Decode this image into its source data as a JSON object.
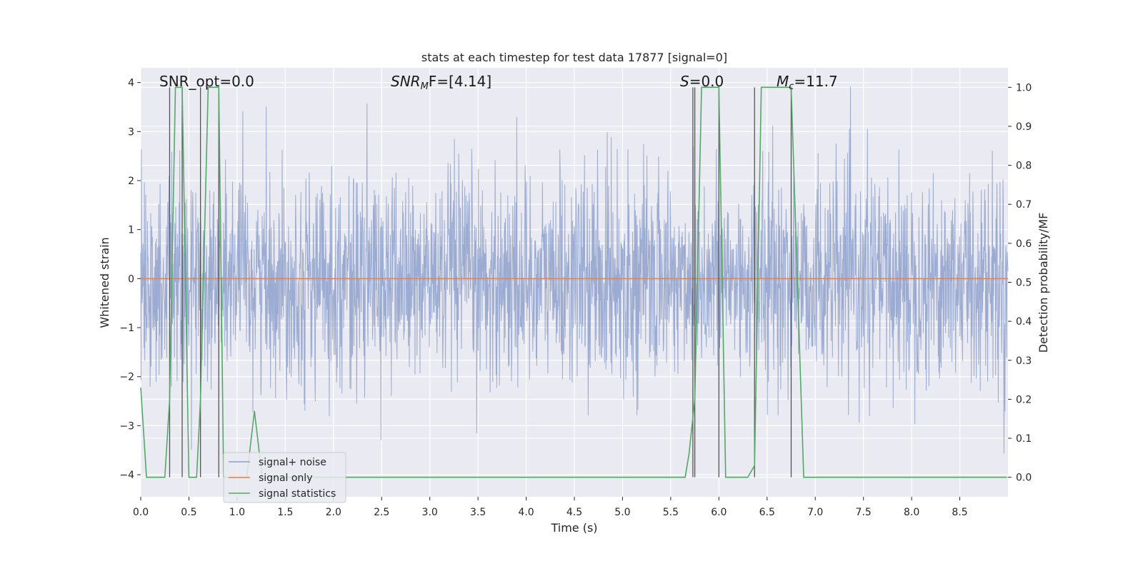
{
  "chart_data": {
    "type": "line",
    "title": "stats at each timestep for test data 17877 [signal=0]",
    "xlabel": "Time (s)",
    "ylabel": "Whitened strain",
    "y2label": "Detection probability/MF",
    "xlim": [
      0.0,
      9.0
    ],
    "ylim": [
      -4.45,
      4.3
    ],
    "y2lim": [
      -0.05,
      1.05
    ],
    "x_ticks": [
      "0.0",
      "0.5",
      "1.0",
      "1.5",
      "2.0",
      "2.5",
      "3.0",
      "3.5",
      "4.0",
      "4.5",
      "5.0",
      "5.5",
      "6.0",
      "6.5",
      "7.0",
      "7.5",
      "8.0",
      "8.5"
    ],
    "y_ticks": [
      "4",
      "3",
      "2",
      "1",
      "0",
      "−1",
      "−2",
      "−3",
      "−4"
    ],
    "y2_ticks": [
      "1.0",
      "0.9",
      "0.8",
      "0.7",
      "0.6",
      "0.5",
      "0.4",
      "0.3",
      "0.2",
      "0.1",
      "0.0"
    ],
    "grid": true,
    "legend_position": "lower-left",
    "annotations": {
      "snr_opt": "SNR_opt=0.0",
      "snr_mf_sym": "SNR",
      "snr_mf_sub": "M",
      "snr_mf_rest": "F=[4.14]",
      "s_sym": "S",
      "s_rest": "=0.0",
      "mc_sym": "M",
      "mc_sub": "c",
      "mc_rest": "=11.7"
    },
    "vlines": [
      0.3,
      0.43,
      0.62,
      0.81,
      5.73,
      5.75,
      6.0,
      6.37,
      6.75
    ],
    "series": [
      {
        "name": "signal+ noise",
        "color": "#8da0cb",
        "description_range": [
          -4.0,
          3.9
        ],
        "noise_std": 1.0
      },
      {
        "name": "signal only",
        "color": "#dd8452",
        "values_constant": 0.0
      },
      {
        "name": "signal statistics",
        "color": "#55a868",
        "x": [
          0.0,
          0.06,
          0.25,
          0.3,
          0.36,
          0.43,
          0.5,
          0.55,
          0.58,
          0.62,
          0.7,
          0.81,
          0.86,
          1.1,
          1.18,
          1.26,
          2.5,
          2.6,
          5.65,
          5.69,
          5.75,
          5.82,
          6.0,
          6.07,
          6.3,
          6.37,
          6.44,
          6.75,
          6.88,
          8.99
        ],
        "y": [
          0.23,
          0.0,
          0.0,
          0.2,
          1.0,
          1.0,
          0.0,
          0.0,
          0.0,
          0.2,
          1.0,
          1.0,
          0.0,
          0.0,
          0.17,
          0.0,
          0.0,
          0.0,
          0.0,
          0.06,
          0.2,
          1.0,
          1.0,
          0.0,
          0.0,
          0.03,
          1.0,
          1.0,
          0.0,
          0.0
        ]
      }
    ]
  }
}
